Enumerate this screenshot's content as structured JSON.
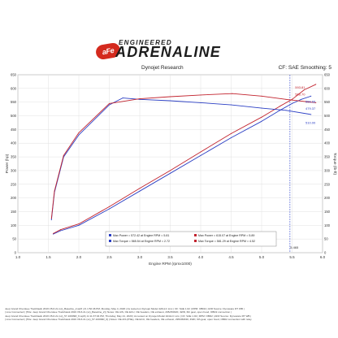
{
  "header": {
    "logo_badge": "aFe",
    "logo_badge_sub": "POWER",
    "engineered": "ENGINEERED",
    "brand": "ADRENALINE",
    "dyno_title": "Dynojet Research",
    "smoothing": "CF: SAE Smoothing: 5"
  },
  "footer": {
    "lines": [
      "Jeep Grand Cherokee Trackhawk 2019 V8-6.2L (sc)_Baseline_2.wp8 | A\\ 1:52:46 PM, Monday, May 4, 2020 | As tested on Dynojet Model 424xLC Linx | CF: SAE 1.02 | RPM: OBD2 | AFR Source: Dynoware RT WB |",
      "| Line Connected | [Title: Jeep Grand Cherokee Trackhawk 2019 V8-6.2L (sc)_Baseline_2] | Notes: OE AIS, OE ECU, OE headers, OE exhaust, 295/45/R20, 4WD, 6th gear, open hood, OBD2 connection |",
      "Jeep Grand Cherokee Trackhawk 2019 V8-6.2L (sc)_57-10009R_6.wp8 | A\\ 11:37:04 PM, Thursday, May 21, 2020 | As tested on Dynojet Model 424xLC Linx | CF: SAE 1.02 | RPM: OBD2 | AFR Source: Dynoware RT WB |",
      "| Line Connected | [Title: Jeep Grand Cherokee Trackhawk 2019 V8-6.2L (sc)_57-10009R_6] | Notes: OE AIS (PSE), OE ECU, OE headers, OE exhaust, 295/45/R20, 4WD, 6th gear, open hood, OBD2 connection with relay"
    ]
  },
  "chart_data": {
    "type": "line",
    "title": "Dynojet Research",
    "xlabel": "Engine RPM (rpmx1000)",
    "ylabel": "Power (hp)",
    "ylabel_right": "Torque (lb-ft)",
    "xlim": [
      1.0,
      6.0
    ],
    "ylim": [
      0,
      650
    ],
    "x_ticks": [
      "1.0",
      "1.5",
      "2.0",
      "2.5",
      "3.0",
      "3.5",
      "4.0",
      "4.5",
      "5.0",
      "5.5",
      "6.0"
    ],
    "y_ticks": [
      "0",
      "50",
      "100",
      "150",
      "200",
      "250",
      "300",
      "350",
      "400",
      "450",
      "500",
      "550",
      "600",
      "650"
    ],
    "y_ticks_right": [
      "0",
      "50",
      "100",
      "150",
      "200",
      "250",
      "300",
      "350",
      "400",
      "450",
      "500",
      "550",
      "600",
      "650"
    ],
    "grid": true,
    "series": [
      {
        "name": "Max Power = 572.42 at Engine RPM = 5.81",
        "color": "#2b3fc4",
        "kind": "power",
        "x": [
          1.58,
          1.7,
          2.0,
          2.5,
          3.0,
          3.5,
          4.0,
          4.5,
          5.0,
          5.3,
          5.5,
          5.65,
          5.81
        ],
        "y": [
          68,
          80,
          100,
          160,
          225,
          290,
          355,
          420,
          480,
          520,
          545,
          560,
          572
        ]
      },
      {
        "name": "Max Power = 615.07 at Engine RPM = 5.89",
        "color": "#c2232e",
        "kind": "power",
        "x": [
          1.58,
          1.7,
          2.0,
          2.5,
          3.0,
          3.5,
          4.0,
          4.5,
          5.0,
          5.3,
          5.5,
          5.7,
          5.89
        ],
        "y": [
          70,
          84,
          105,
          168,
          235,
          300,
          368,
          435,
          495,
          535,
          560,
          595,
          615
        ]
      },
      {
        "name": "Max Torque = 565.54 at Engine RPM = 2.72",
        "color": "#2b3fc4",
        "kind": "torque",
        "x": [
          1.55,
          1.6,
          1.75,
          2.0,
          2.5,
          2.72,
          3.0,
          3.5,
          4.0,
          4.5,
          5.0,
          5.4,
          5.81
        ],
        "y": [
          120,
          220,
          350,
          430,
          540,
          565,
          560,
          555,
          548,
          540,
          528,
          520,
          505
        ]
      },
      {
        "name": "Max Torque = 581.29 at Engine RPM = 4.52",
        "color": "#c2232e",
        "kind": "torque",
        "x": [
          1.55,
          1.6,
          1.75,
          2.0,
          2.5,
          3.0,
          3.5,
          4.0,
          4.52,
          5.0,
          5.4,
          5.89
        ],
        "y": [
          125,
          225,
          355,
          438,
          545,
          562,
          570,
          576,
          581,
          572,
          560,
          548
        ]
      }
    ],
    "annotations": [
      {
        "text": "593.81",
        "x": 5.55,
        "y": 600,
        "color": "#c2232e"
      },
      {
        "text": "566.70",
        "x": 5.55,
        "y": 575,
        "color": "#c2232e"
      },
      {
        "text": "556.65",
        "x": 5.72,
        "y": 548,
        "color": "#2b3fc4"
      },
      {
        "text": "479.37",
        "x": 5.72,
        "y": 522,
        "color": "#2b3fc4"
      },
      {
        "text": "510.00",
        "x": 5.72,
        "y": 470,
        "color": "#2b3fc4"
      },
      {
        "text": "5.465",
        "x": 5.47,
        "y": 15,
        "color": "#333333"
      }
    ],
    "cursor_rpm": 5.465,
    "legend_placement": "bottom-center",
    "legend": [
      {
        "text": "Max Power = 572.42 at Engine RPM = 5.81",
        "color": "#2b3fc4"
      },
      {
        "text": "Max Power = 615.07 at Engine RPM = 5.89",
        "color": "#c2232e"
      },
      {
        "text": "Max Torque = 565.54 at Engine RPM = 2.72",
        "color": "#2b3fc4"
      },
      {
        "text": "Max Torque = 581.29 at Engine RPM = 4.52",
        "color": "#c2232e"
      }
    ]
  }
}
